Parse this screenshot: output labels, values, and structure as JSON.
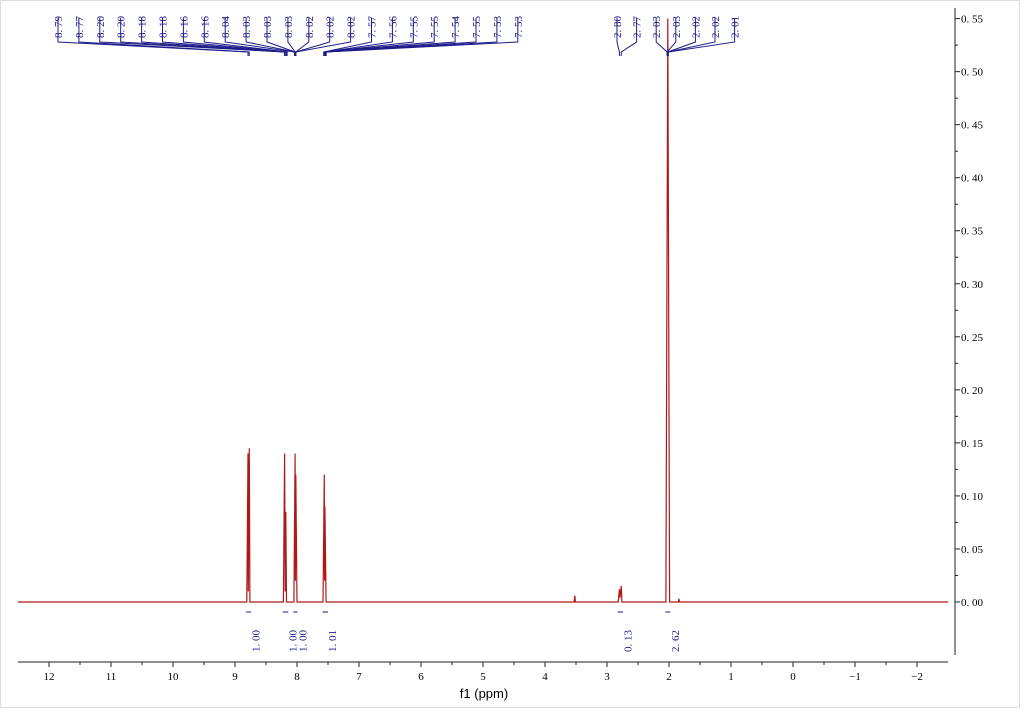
{
  "chart_data": {
    "type": "line",
    "xlabel": "f1 (ppm)",
    "xlim": [
      12.5,
      -2.5
    ],
    "xticks": [
      12,
      11,
      10,
      9,
      8,
      7,
      6,
      5,
      4,
      3,
      2,
      1,
      0,
      {
        "value": -1,
        "label": "−1"
      },
      {
        "value": -2,
        "label": "−2"
      }
    ],
    "ylim": [
      -0.05,
      0.56
    ],
    "yticks": [
      {
        "value": 0,
        "label": "0. 00"
      },
      {
        "value": 0.05,
        "label": "0. 05"
      },
      {
        "value": 0.1,
        "label": "0. 10"
      },
      {
        "value": 0.15,
        "label": "0. 15"
      },
      {
        "value": 0.2,
        "label": "0. 20"
      },
      {
        "value": 0.25,
        "label": "0. 25"
      },
      {
        "value": 0.3,
        "label": "0. 30"
      },
      {
        "value": 0.35,
        "label": "0. 35"
      },
      {
        "value": 0.4,
        "label": "0. 40"
      },
      {
        "value": 0.45,
        "label": "0. 45"
      },
      {
        "value": 0.5,
        "label": "0. 50"
      },
      {
        "value": 0.55,
        "label": "0. 55"
      }
    ],
    "y_axis_side": "right",
    "x": [
      12.5,
      8.81,
      8.79,
      8.785,
      8.77,
      8.76,
      8.22,
      8.2,
      8.19,
      8.18,
      8.17,
      8.05,
      8.03,
      8.025,
      8.02,
      8.0,
      7.58,
      7.56,
      7.555,
      7.55,
      7.53,
      3.53,
      3.52,
      3.51,
      2.82,
      2.8,
      2.79,
      2.77,
      2.76,
      2.05,
      2.02,
      1.99,
      1.85,
      1.84,
      1.83,
      -2.5
    ],
    "series": [
      {
        "color": "#b01818",
        "values": [
          0,
          0,
          0.14,
          0.01,
          0.145,
          0,
          0,
          0.14,
          0.01,
          0.085,
          0,
          0,
          0.14,
          0.02,
          0.12,
          0,
          0,
          0.12,
          0.02,
          0.09,
          0,
          0,
          0.006,
          0,
          0,
          0.012,
          0.004,
          0.015,
          0,
          0,
          0.55,
          0,
          0,
          0.003,
          0,
          0
        ]
      }
    ],
    "peaks": [
      {
        "value": 8.79,
        "label": "8. 79"
      },
      {
        "value": 8.77,
        "label": "8. 77"
      },
      {
        "value": 8.2,
        "label": "8. 20"
      },
      {
        "value": 8.2,
        "label": "8. 20"
      },
      {
        "value": 8.18,
        "label": "8. 18"
      },
      {
        "value": 8.18,
        "label": "8. 18"
      },
      {
        "value": 8.16,
        "label": "8. 16"
      },
      {
        "value": 8.16,
        "label": "8. 16"
      },
      {
        "value": 8.04,
        "label": "8. 04"
      },
      {
        "value": 8.03,
        "label": "8. 03"
      },
      {
        "value": 8.03,
        "label": "8. 03"
      },
      {
        "value": 8.03,
        "label": "8. 03"
      },
      {
        "value": 8.02,
        "label": "8. 02"
      },
      {
        "value": 8.02,
        "label": "8. 02"
      },
      {
        "value": 8.02,
        "label": "8. 02"
      },
      {
        "value": 7.57,
        "label": "7. 57"
      },
      {
        "value": 7.56,
        "label": "7. 56"
      },
      {
        "value": 7.55,
        "label": "7. 55"
      },
      {
        "value": 7.55,
        "label": "7. 55"
      },
      {
        "value": 7.54,
        "label": "7. 54"
      },
      {
        "value": 7.55,
        "label": "7. 55"
      },
      {
        "value": 7.53,
        "label": "7. 53"
      },
      {
        "value": 7.53,
        "label": "7. 53"
      },
      {
        "value": 2.8,
        "label": "2. 80"
      },
      {
        "value": 2.77,
        "label": "2. 77"
      },
      {
        "value": 2.03,
        "label": "2. 03"
      },
      {
        "value": 2.03,
        "label": "2. 03"
      },
      {
        "value": 2.02,
        "label": "2. 02"
      },
      {
        "value": 2.02,
        "label": "2. 02"
      },
      {
        "value": 2.01,
        "label": "2. 01"
      }
    ],
    "integrals": [
      {
        "from": 8.82,
        "to": 8.74,
        "value": 1,
        "label": "1. 00"
      },
      {
        "from": 8.23,
        "to": 8.14,
        "value": 1,
        "label": "1. 00"
      },
      {
        "from": 8.06,
        "to": 7.99,
        "value": 1,
        "label": "1. 00"
      },
      {
        "from": 7.59,
        "to": 7.5,
        "value": 1.01,
        "label": "1. 01"
      },
      {
        "from": 2.83,
        "to": 2.74,
        "value": 0.13,
        "label": "0. 13"
      },
      {
        "from": 2.06,
        "to": 1.98,
        "value": 2.62,
        "label": "2. 62"
      }
    ]
  }
}
